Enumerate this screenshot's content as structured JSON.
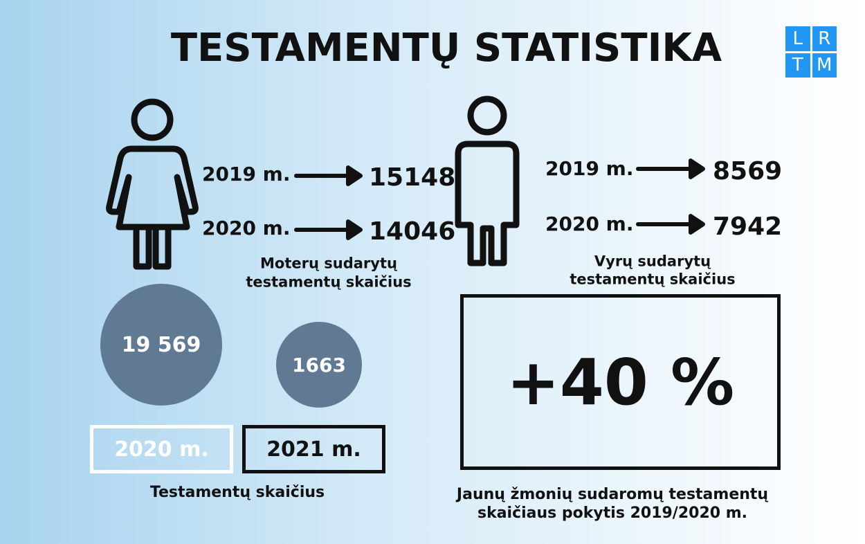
{
  "header": {
    "title": "TESTAMENTŲ STATISTIKA",
    "logo": [
      "L",
      "R",
      "T",
      "M"
    ]
  },
  "women": {
    "rows": [
      {
        "year": "2019 m.",
        "value": 15148
      },
      {
        "year": "2020 m.",
        "value": 14046
      }
    ],
    "caption": [
      "Moterų sudarytų",
      "testamentų skaičius"
    ]
  },
  "men": {
    "rows": [
      {
        "year": "2019 m.",
        "value": 8569
      },
      {
        "year": "2020 m.",
        "value": 7942
      }
    ],
    "caption": [
      "Vyrų sudarytų",
      "testamentų skaičius"
    ]
  },
  "totals": {
    "items": [
      {
        "value": "19 569",
        "year": "2020 m."
      },
      {
        "value": 1663,
        "year": "2021 m."
      }
    ],
    "caption": "Testamentų skaičius"
  },
  "young": {
    "value": "+40 %",
    "caption": [
      "Jaunų žmonių sudaromų testamentų",
      "skaičiaus pokytis 2019/2020 m."
    ]
  }
}
